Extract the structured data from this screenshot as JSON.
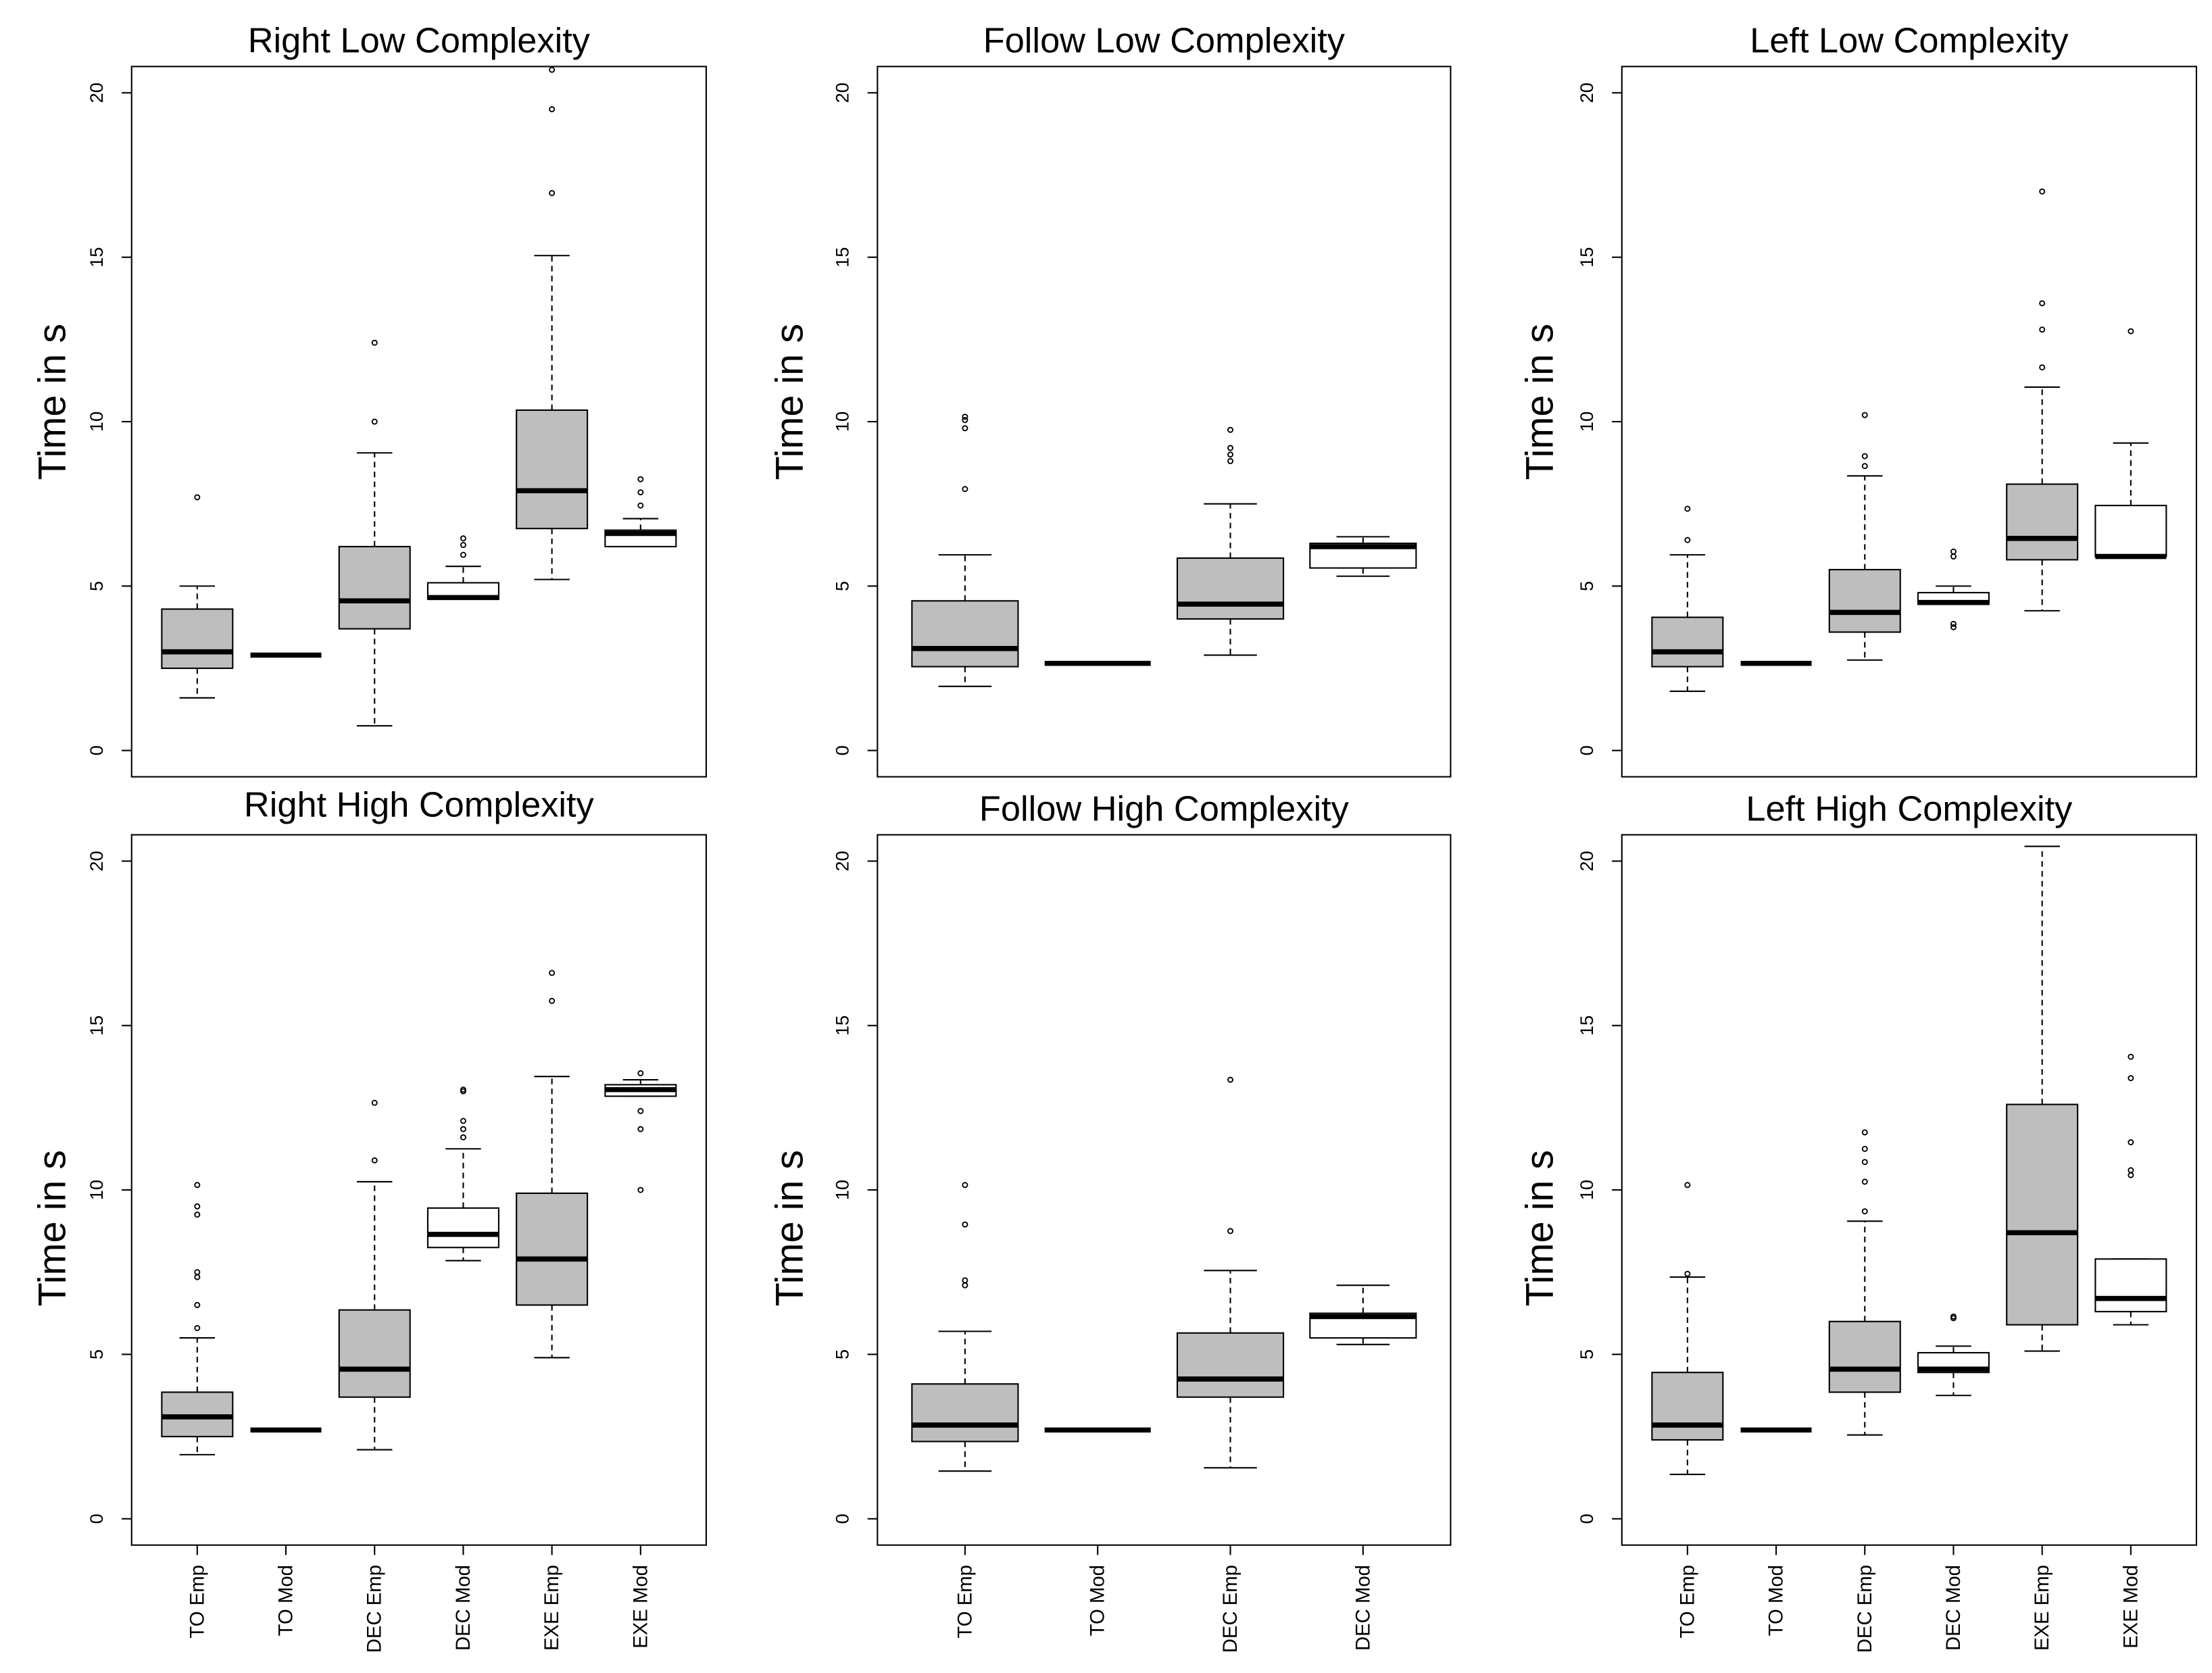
{
  "chart_data": [
    {
      "type": "box",
      "title": "Right Low Complexity",
      "ylabel": "Time in s",
      "ylim": [
        0,
        20
      ],
      "yticks": [
        0,
        5,
        10,
        15,
        20
      ],
      "boxes": [
        {
          "low": 1.6,
          "q1": 2.5,
          "median": 3.0,
          "q3": 4.3,
          "high": 5.0,
          "outliers": [
            7.7
          ],
          "fill": "#bebebe"
        },
        {
          "low": 2.9,
          "q1": 2.9,
          "median": 2.9,
          "q3": 2.9,
          "high": 2.9,
          "outliers": [],
          "fill": "#ffffff"
        },
        {
          "low": 0.75,
          "q1": 3.7,
          "median": 4.55,
          "q3": 6.2,
          "high": 9.05,
          "outliers": [
            10.0,
            12.4
          ],
          "fill": "#bebebe"
        },
        {
          "low": 4.6,
          "q1": 4.6,
          "median": 4.65,
          "q3": 5.1,
          "high": 5.6,
          "outliers": [
            5.95,
            6.25,
            6.45
          ],
          "fill": "#ffffff"
        },
        {
          "low": 5.2,
          "q1": 6.75,
          "median": 7.9,
          "q3": 10.35,
          "high": 15.05,
          "outliers": [
            16.95,
            19.5,
            20.7
          ],
          "fill": "#bebebe"
        },
        {
          "low": 6.2,
          "q1": 6.2,
          "median": 6.6,
          "q3": 6.7,
          "high": 7.05,
          "outliers": [
            7.45,
            7.85,
            8.25
          ],
          "fill": "#ffffff"
        }
      ]
    },
    {
      "type": "box",
      "title": "Follow Low Complexity",
      "ylabel": "Time in s",
      "ylim": [
        0,
        20
      ],
      "yticks": [
        0,
        5,
        10,
        15,
        20
      ],
      "boxes": [
        {
          "low": 1.95,
          "q1": 2.55,
          "median": 3.1,
          "q3": 4.55,
          "high": 5.95,
          "outliers": [
            7.95,
            9.8,
            10.05,
            10.15
          ],
          "fill": "#bebebe"
        },
        {
          "low": 2.65,
          "q1": 2.65,
          "median": 2.65,
          "q3": 2.65,
          "high": 2.65,
          "outliers": [],
          "fill": "#ffffff"
        },
        {
          "low": 2.9,
          "q1": 4.0,
          "median": 4.45,
          "q3": 5.85,
          "high": 7.5,
          "outliers": [
            8.8,
            9.0,
            9.2,
            9.75
          ],
          "fill": "#bebebe"
        },
        {
          "low": 5.3,
          "q1": 5.55,
          "median": 6.2,
          "q3": 6.3,
          "high": 6.5,
          "outliers": [],
          "fill": "#ffffff"
        }
      ]
    },
    {
      "type": "box",
      "title": "Left Low Complexity",
      "ylabel": "Time in s",
      "ylim": [
        0,
        20
      ],
      "yticks": [
        0,
        5,
        10,
        15,
        20
      ],
      "boxes": [
        {
          "low": 1.8,
          "q1": 2.55,
          "median": 3.0,
          "q3": 4.05,
          "high": 5.95,
          "outliers": [
            6.4,
            7.35
          ],
          "fill": "#bebebe"
        },
        {
          "low": 2.65,
          "q1": 2.65,
          "median": 2.65,
          "q3": 2.65,
          "high": 2.65,
          "outliers": [],
          "fill": "#ffffff"
        },
        {
          "low": 2.75,
          "q1": 3.6,
          "median": 4.2,
          "q3": 5.5,
          "high": 8.35,
          "outliers": [
            8.65,
            8.95,
            10.2
          ],
          "fill": "#bebebe"
        },
        {
          "low": 4.45,
          "q1": 4.45,
          "median": 4.5,
          "q3": 4.8,
          "high": 5.0,
          "outliers": [
            5.9,
            6.05,
            3.85,
            3.75
          ],
          "fill": "#ffffff"
        },
        {
          "low": 4.25,
          "q1": 5.8,
          "median": 6.45,
          "q3": 8.1,
          "high": 11.05,
          "outliers": [
            11.65,
            12.8,
            13.6,
            17.0
          ],
          "fill": "#bebebe"
        },
        {
          "low": 5.9,
          "q1": 5.9,
          "median": 5.9,
          "q3": 7.45,
          "high": 9.35,
          "outliers": [
            12.75
          ],
          "fill": "#ffffff"
        }
      ]
    },
    {
      "type": "box",
      "title": "Right High Complexity",
      "ylabel": "Time in s",
      "ylim": [
        0,
        20
      ],
      "yticks": [
        0,
        5,
        10,
        15,
        20
      ],
      "categories": [
        "TO Emp",
        "TO Mod",
        "DEC Emp",
        "DEC Mod",
        "EXE Emp",
        "EXE Mod"
      ],
      "boxes": [
        {
          "low": 1.95,
          "q1": 2.5,
          "median": 3.1,
          "q3": 3.85,
          "high": 5.5,
          "outliers": [
            5.8,
            6.5,
            7.35,
            7.5,
            9.25,
            9.5,
            10.15
          ],
          "fill": "#bebebe"
        },
        {
          "low": 2.7,
          "q1": 2.7,
          "median": 2.7,
          "q3": 2.7,
          "high": 2.7,
          "outliers": [],
          "fill": "#ffffff"
        },
        {
          "low": 2.1,
          "q1": 3.7,
          "median": 4.55,
          "q3": 6.35,
          "high": 10.25,
          "outliers": [
            10.9,
            12.65
          ],
          "fill": "#bebebe"
        },
        {
          "low": 7.85,
          "q1": 8.25,
          "median": 8.65,
          "q3": 9.45,
          "high": 11.25,
          "outliers": [
            11.6,
            11.85,
            12.1,
            13.0,
            13.05
          ],
          "fill": "#ffffff"
        },
        {
          "low": 4.9,
          "q1": 6.5,
          "median": 7.9,
          "q3": 9.9,
          "high": 13.45,
          "outliers": [
            15.75,
            16.6
          ],
          "fill": "#bebebe"
        },
        {
          "low": 12.85,
          "q1": 12.85,
          "median": 13.05,
          "q3": 13.2,
          "high": 13.35,
          "outliers": [
            13.55,
            12.4,
            11.85,
            10.0
          ],
          "fill": "#ffffff"
        }
      ]
    },
    {
      "type": "box",
      "title": "Follow High Complexity",
      "ylabel": "Time in s",
      "ylim": [
        0,
        20
      ],
      "yticks": [
        0,
        5,
        10,
        15,
        20
      ],
      "categories": [
        "TO Emp",
        "TO Mod",
        "DEC Emp",
        "DEC Mod"
      ],
      "boxes": [
        {
          "low": 1.45,
          "q1": 2.35,
          "median": 2.85,
          "q3": 4.1,
          "high": 5.7,
          "outliers": [
            7.1,
            7.25,
            8.95,
            10.15
          ],
          "fill": "#bebebe"
        },
        {
          "low": 2.7,
          "q1": 2.7,
          "median": 2.7,
          "q3": 2.7,
          "high": 2.7,
          "outliers": [],
          "fill": "#ffffff"
        },
        {
          "low": 1.55,
          "q1": 3.7,
          "median": 4.25,
          "q3": 5.65,
          "high": 7.55,
          "outliers": [
            8.75,
            13.35
          ],
          "fill": "#bebebe"
        },
        {
          "low": 5.3,
          "q1": 5.5,
          "median": 6.15,
          "q3": 6.25,
          "high": 7.1,
          "outliers": [],
          "fill": "#ffffff"
        }
      ]
    },
    {
      "type": "box",
      "title": "Left High Complexity",
      "ylabel": "Time in s",
      "ylim": [
        0,
        20
      ],
      "yticks": [
        0,
        5,
        10,
        15,
        20
      ],
      "categories": [
        "TO Emp",
        "TO Mod",
        "DEC Emp",
        "DEC Mod",
        "EXE Emp",
        "EXE Mod"
      ],
      "boxes": [
        {
          "low": 1.35,
          "q1": 2.4,
          "median": 2.85,
          "q3": 4.45,
          "high": 7.35,
          "outliers": [
            10.15,
            7.45
          ],
          "fill": "#bebebe"
        },
        {
          "low": 2.7,
          "q1": 2.7,
          "median": 2.7,
          "q3": 2.7,
          "high": 2.7,
          "outliers": [],
          "fill": "#ffffff"
        },
        {
          "low": 2.55,
          "q1": 3.85,
          "median": 4.55,
          "q3": 6.0,
          "high": 9.05,
          "outliers": [
            9.35,
            10.25,
            10.85,
            11.25,
            11.75
          ],
          "fill": "#bebebe"
        },
        {
          "low": 3.75,
          "q1": 4.45,
          "median": 4.55,
          "q3": 5.05,
          "high": 5.25,
          "outliers": [
            6.1,
            6.15
          ],
          "fill": "#ffffff"
        },
        {
          "low": 5.1,
          "q1": 5.9,
          "median": 8.7,
          "q3": 12.6,
          "high": 20.45,
          "outliers": [],
          "fill": "#bebebe"
        },
        {
          "low": 5.9,
          "q1": 6.3,
          "median": 6.7,
          "q3": 7.9,
          "high": 7.9,
          "outliers": [
            14.05,
            13.4,
            11.45,
            10.6,
            10.45
          ],
          "fill": "#ffffff"
        }
      ]
    }
  ]
}
